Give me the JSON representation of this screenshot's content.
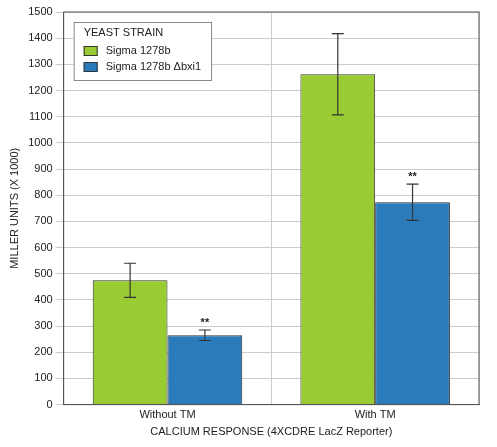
{
  "chart_data": {
    "type": "bar",
    "x_label": "CALCIUM RESPONSE (4XCDRE LacZ Reporter)",
    "y_label": "MILLER UNITS (X 1000)",
    "categories": [
      "Without TM",
      "With TM"
    ],
    "series": [
      {
        "name": "Sigma 1278b",
        "color": "#99cc33",
        "values": [
          475,
          1262
        ],
        "errors": [
          65,
          155
        ]
      },
      {
        "name": "Sigma 1278b Δbxi1",
        "color": "#2b7bba",
        "values": [
          265,
          773
        ],
        "errors": [
          20,
          69
        ],
        "annotations": [
          "**",
          "**"
        ]
      }
    ],
    "legend_title": "YEAST STRAIN",
    "legend": "top-left",
    "ylim": [
      0,
      1500
    ],
    "yticks": [
      0,
      100,
      200,
      300,
      400,
      500,
      600,
      700,
      800,
      900,
      1000,
      1100,
      1200,
      1300,
      1400,
      1500
    ],
    "grid": true
  }
}
